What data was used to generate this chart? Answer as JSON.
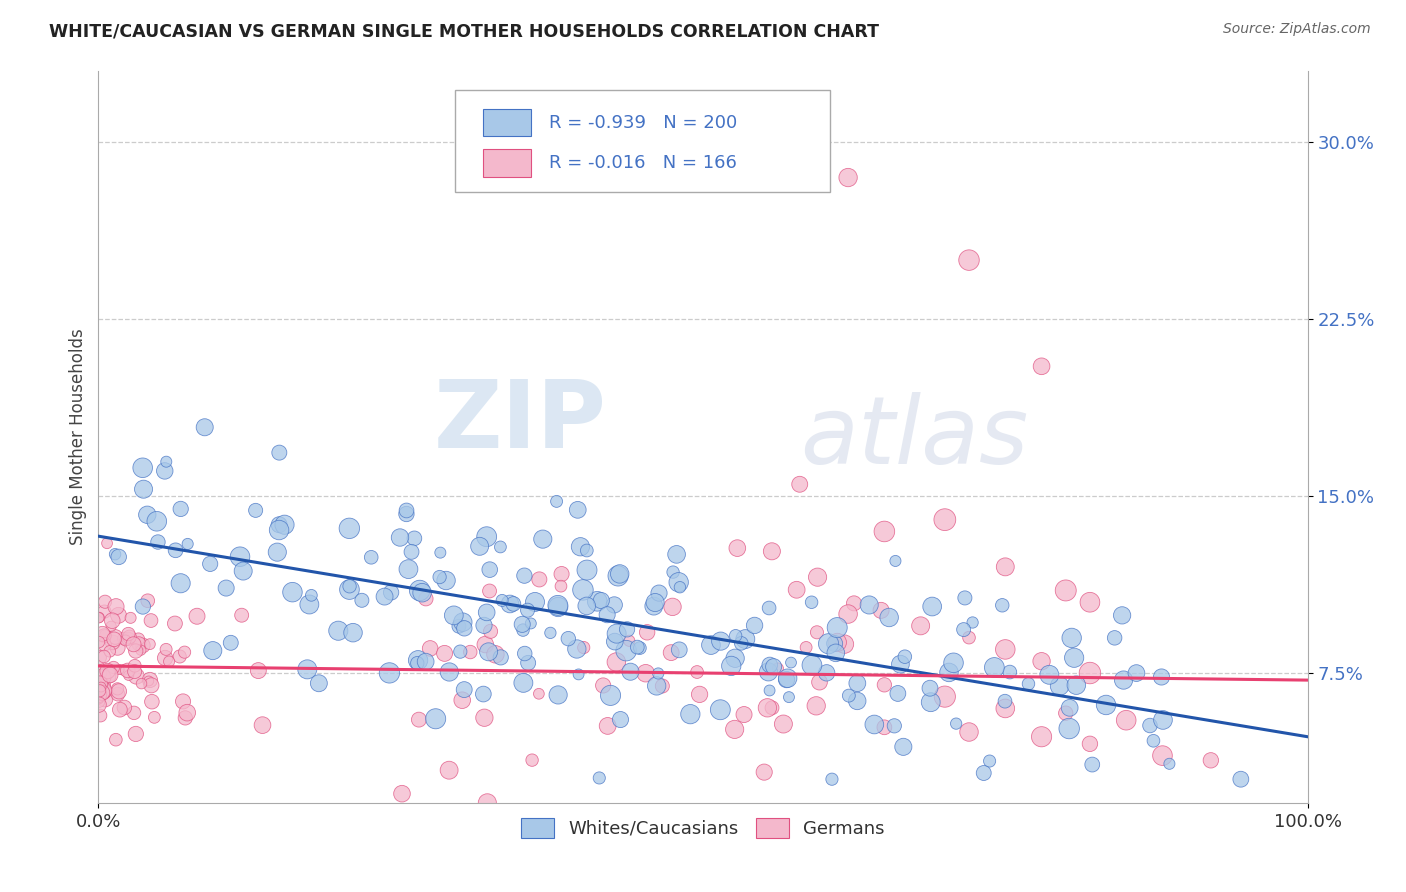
{
  "title": "WHITE/CAUCASIAN VS GERMAN SINGLE MOTHER HOUSEHOLDS CORRELATION CHART",
  "source": "Source: ZipAtlas.com",
  "ylabel": "Single Mother Households",
  "xlim": [
    0,
    1.0
  ],
  "ylim": [
    0.02,
    0.33
  ],
  "yticks": [
    0.075,
    0.15,
    0.225,
    0.3
  ],
  "ytick_labels": [
    "7.5%",
    "15.0%",
    "22.5%",
    "30.0%"
  ],
  "xticks": [
    0.0,
    1.0
  ],
  "xtick_labels": [
    "0.0%",
    "100.0%"
  ],
  "blue_fill": "#a8c8e8",
  "blue_edge": "#4472c4",
  "pink_fill": "#f4b8cc",
  "pink_edge": "#e05080",
  "blue_line_color": "#2255aa",
  "pink_line_color": "#e84070",
  "blue_R": "-0.939",
  "blue_N": "200",
  "pink_R": "-0.016",
  "pink_N": "166",
  "legend_label_blue": "Whites/Caucasians",
  "legend_label_pink": "Germans",
  "watermark_zip": "ZIP",
  "watermark_atlas": "atlas",
  "blue_trend_x": [
    0.0,
    1.0
  ],
  "blue_trend_y": [
    0.133,
    0.048
  ],
  "pink_trend_x": [
    0.0,
    1.0
  ],
  "pink_trend_y": [
    0.078,
    0.072
  ],
  "grid_color": "#cccccc",
  "title_color": "#222222",
  "source_color": "#666666",
  "tick_label_color": "#4472c4",
  "ylabel_color": "#444444",
  "seed": 17
}
